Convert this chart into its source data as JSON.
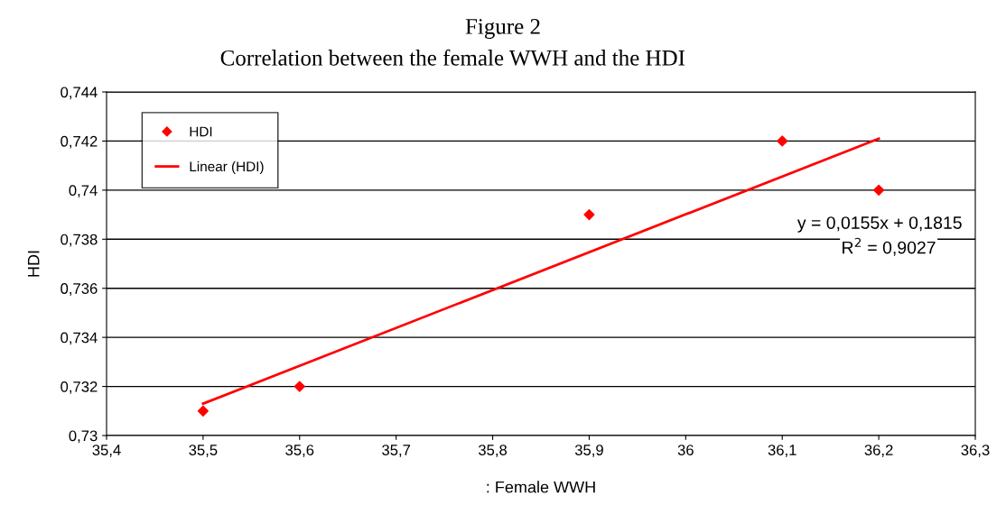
{
  "chart_data": {
    "type": "scatter",
    "title": "Figure 2",
    "subtitle": "Correlation between the female WWH and the HDI",
    "xlabel": ": Female WWH",
    "ylabel": "HDI",
    "series": [
      {
        "name": "HDI",
        "color": "#ff0000",
        "marker": "diamond",
        "x": [
          35.5,
          35.6,
          35.9,
          36.1,
          36.2
        ],
        "values": [
          0.731,
          0.732,
          0.739,
          0.742,
          0.74
        ]
      },
      {
        "name": "Linear (HDI)",
        "type": "line",
        "color": "#ff0000",
        "marker": "none",
        "line_style": "solid",
        "x": [
          35.5,
          36.2
        ],
        "values": [
          0.7313,
          0.7421
        ]
      }
    ],
    "xlim": [
      35.4,
      36.3
    ],
    "xticks": [
      {
        "value": 35.4,
        "label": "35,4"
      },
      {
        "value": 35.5,
        "label": "35,5"
      },
      {
        "value": 35.6,
        "label": "35,6"
      },
      {
        "value": 35.7,
        "label": "35,7"
      },
      {
        "value": 35.8,
        "label": "35,8"
      },
      {
        "value": 35.9,
        "label": "35,9"
      },
      {
        "value": 36,
        "label": "36"
      },
      {
        "value": 36.1,
        "label": "36,1"
      },
      {
        "value": 36.2,
        "label": "36,2"
      },
      {
        "value": 36.3,
        "label": "36,3"
      }
    ],
    "ylim": [
      0.73,
      0.744
    ],
    "yticks": [
      {
        "value": 0.73,
        "label": "0,73"
      },
      {
        "value": 0.732,
        "label": "0,732"
      },
      {
        "value": 0.734,
        "label": "0,734"
      },
      {
        "value": 0.736,
        "label": "0,736"
      },
      {
        "value": 0.738,
        "label": "0,738"
      },
      {
        "value": 0.74,
        "label": "0,74"
      },
      {
        "value": 0.742,
        "label": "0,742"
      },
      {
        "value": 0.744,
        "label": "0,744"
      }
    ],
    "grid": "y",
    "legend": "top left",
    "annotations": [
      "y = 0,0155x + 0,1815",
      "R$^{2}$ = 0,9027"
    ]
  }
}
